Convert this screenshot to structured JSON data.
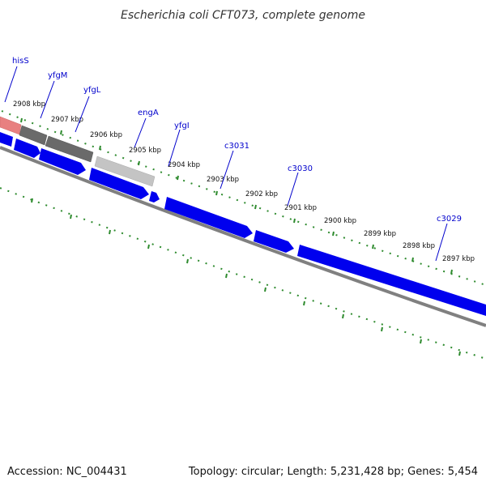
{
  "title": "Escherichia coli CFT073, complete genome",
  "footer": {
    "accession": "Accession: NC_004431",
    "summary": "Topology: circular; Length: 5,231,428 bp; Genes: 5,454"
  },
  "colors": {
    "background": "#ffffff",
    "tick_green": "#2e8b2e",
    "backbone": "#808080",
    "gene_blue": "#0000ee",
    "gene_blue_light": "#4a6cff",
    "label_blue": "#0000cc",
    "rna_red": "#e88080",
    "dark_gray": "#6a6a6a",
    "light_gray": "#c4c4c4"
  },
  "kbp_labels": [
    "2908 kbp",
    "2907 kbp",
    "2906 kbp",
    "2905 kbp",
    "2904 kbp",
    "2903 kbp",
    "2902 kbp",
    "2901 kbp",
    "2900 kbp",
    "2899 kbp",
    "2898 kbp",
    "2897 kbp"
  ],
  "gene_labels": [
    "hisS",
    "yfgM",
    "yfgL",
    "engA",
    "yfgI",
    "c3031",
    "c3030",
    "c3029"
  ]
}
